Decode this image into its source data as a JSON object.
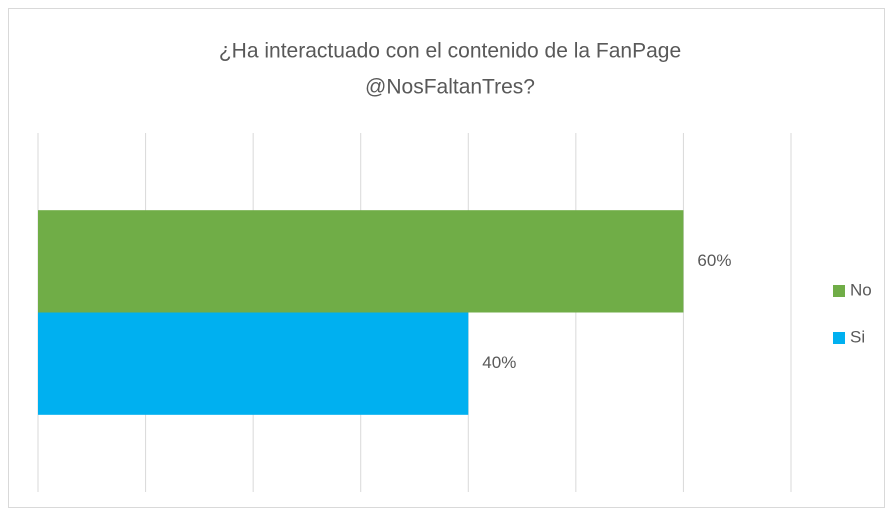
{
  "chart_data": {
    "type": "hbar",
    "title": [
      "¿Ha interactuado con el contenido de la FanPage",
      "@NosFaltanTres?"
    ],
    "categories": [
      null
    ],
    "series": [
      {
        "name": "No",
        "color": "#70ad47",
        "values": [
          60
        ],
        "value_labels": [
          "60%"
        ]
      },
      {
        "name": "Si",
        "color": "#00b0f0",
        "values": [
          40
        ],
        "value_labels": [
          "40%"
        ]
      }
    ],
    "xlim": [
      0,
      70
    ],
    "xticks": [
      0,
      10,
      20,
      30,
      40,
      50,
      60,
      70
    ],
    "grid": true,
    "legend": "right"
  }
}
